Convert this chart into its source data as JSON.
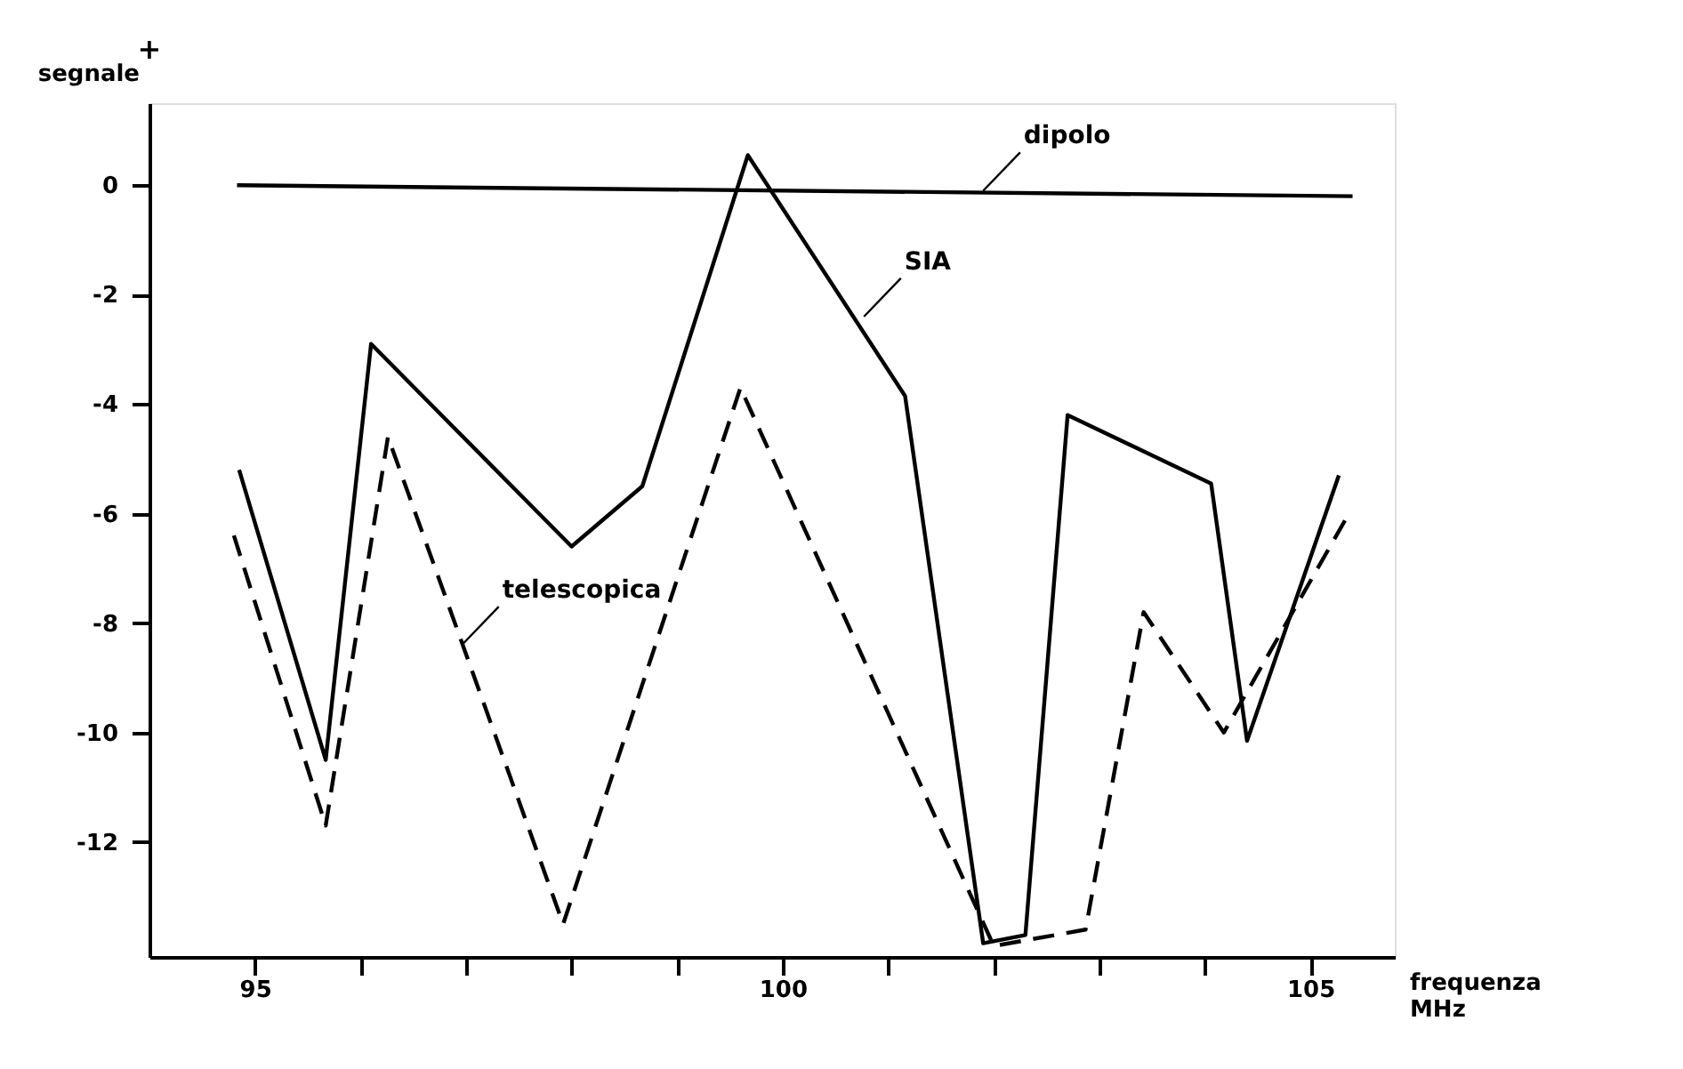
{
  "chart_data": {
    "type": "line",
    "xlabel": "frequenza MHz",
    "ylabel": "segnale",
    "xlim": [
      94.0,
      105.8
    ],
    "ylim": [
      -14.1,
      1.5
    ],
    "xticks": [
      95,
      {
        "value": 96,
        "label": null
      },
      {
        "value": 97,
        "label": null
      },
      {
        "value": 98,
        "label": null
      },
      {
        "value": 99,
        "label": null
      },
      100,
      {
        "value": 101,
        "label": null
      },
      {
        "value": 102,
        "label": null
      },
      {
        "value": 103,
        "label": null
      },
      {
        "value": 104,
        "label": null
      },
      105
    ],
    "yticks": [
      0,
      -2,
      -4,
      -6,
      -8,
      -10,
      -12
    ],
    "grid": false,
    "marker": "none",
    "series": [
      {
        "color": "#000000",
        "line_style": "solid",
        "x": [
          94.83,
          105.4
        ],
        "values": [
          0.0,
          -0.2
        ]
      },
      {
        "color": "#000000",
        "line_style": "solid",
        "x": [
          94.85,
          95.67,
          96.1,
          98.0,
          98.67,
          99.67,
          101.16,
          101.9,
          102.3,
          102.7,
          104.06,
          104.4,
          105.27
        ],
        "values": [
          -5.2,
          -10.5,
          -2.9,
          -6.6,
          -5.5,
          0.55,
          -3.85,
          -13.85,
          -13.7,
          -4.2,
          -5.45,
          -10.15,
          -5.3
        ]
      },
      {
        "color": "#000000",
        "line_style": "dashed",
        "x": [
          94.8,
          95.67,
          96.26,
          97.92,
          99.6,
          102.0,
          102.87,
          103.42,
          104.18,
          105.35
        ],
        "values": [
          -6.4,
          -11.7,
          -4.6,
          -13.5,
          -3.7,
          -13.9,
          -13.6,
          -7.8,
          -10.0,
          -6.05
        ]
      }
    ],
    "annotations": [
      "+",
      {
        "text": "dipolo",
        "x": 101.9,
        "y": -0.1
      },
      {
        "text": "SIA",
        "x": 100.77,
        "y": -2.4
      },
      {
        "text": "telescopica",
        "x": 96.96,
        "y": -8.4
      }
    ]
  }
}
